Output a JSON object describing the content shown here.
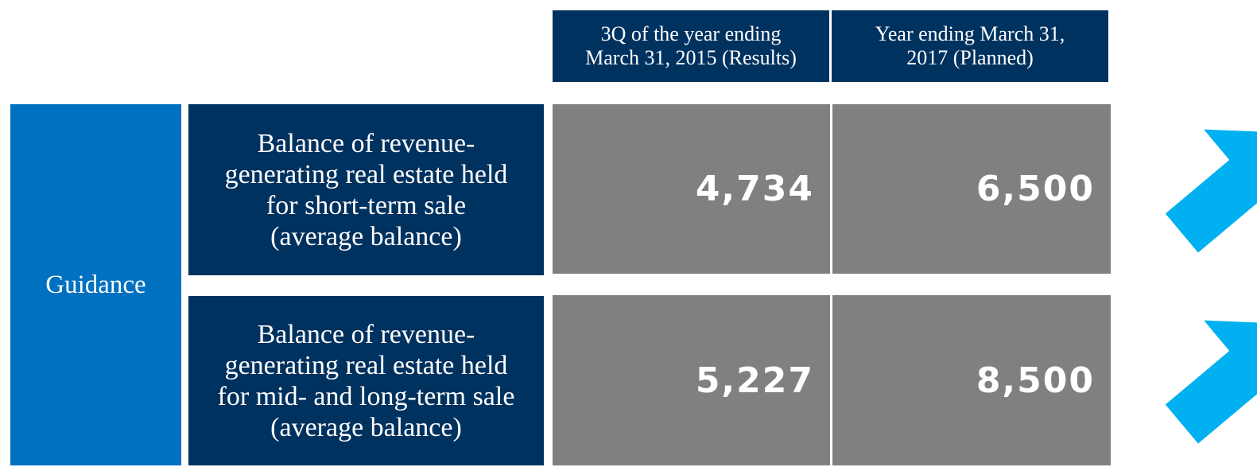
{
  "table": {
    "headers": [
      [
        "3Q of the year ending",
        "March 31, 2015 (Results)"
      ],
      [
        "Year ending March 31,",
        "2017 (Planned)"
      ]
    ],
    "group_label": "Guidance",
    "rows": [
      {
        "label": [
          "Balance of revenue-",
          "generating real estate held",
          "for short-term sale",
          "(average balance)"
        ],
        "values": [
          "4,734",
          "6,500"
        ]
      },
      {
        "label": [
          "Balance of revenue-",
          "generating real estate held",
          "for mid- and long-term sale",
          "(average balance)"
        ],
        "values": [
          "5,227",
          "8,500"
        ]
      }
    ]
  }
}
